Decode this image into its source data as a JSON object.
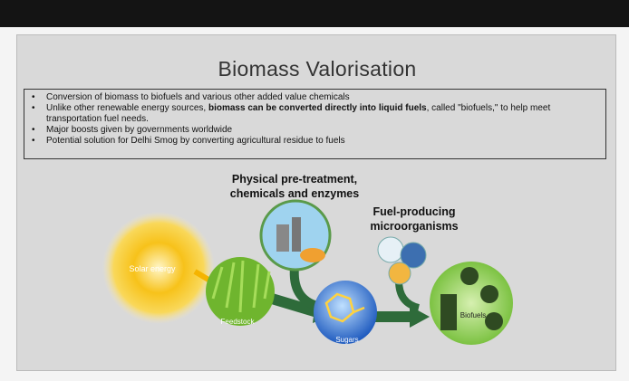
{
  "slide": {
    "title": "Biomass Valorisation",
    "bullets": [
      [
        "Conversion of biomass to biofuels and various other added value chemicals"
      ],
      [
        "Unlike other renewable energy sources, ",
        "biomass can be converted directly into liquid fuels",
        ", called \"biofuels,\" to help meet transportation fuel needs."
      ],
      [
        "Major boosts given by governments worldwide"
      ],
      [
        "Potential solution for Delhi Smog by converting agricultural residue to fuels"
      ]
    ],
    "diagram": {
      "pretreatment": [
        "Physical pre-treatment,",
        "chemicals and enzymes"
      ],
      "microorganisms": [
        "Fuel-producing",
        "microorganisms"
      ],
      "solar": "Solar energy",
      "feedstock": "Feedstock",
      "sugars": "Sugars",
      "biofuels": "Biofuels"
    }
  }
}
